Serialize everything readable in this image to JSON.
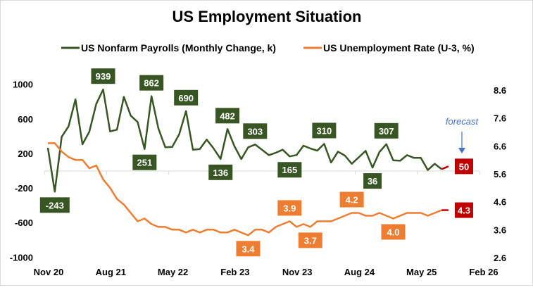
{
  "chart_data": {
    "type": "line",
    "title": "US Employment Situation",
    "legend_position": "top",
    "grid": false,
    "x_tick_labels": [
      "Nov 20",
      "Aug 21",
      "May 22",
      "Feb 23",
      "Nov 23",
      "Aug 24",
      "May 25",
      "Feb 26"
    ],
    "x_start": "Nov 2020",
    "x_frequency": "monthly",
    "y_left": {
      "ticks": [
        "1000",
        "600",
        "200",
        "-200",
        "-600",
        "-1000"
      ],
      "range": [
        -1000,
        1000
      ]
    },
    "y_right": {
      "ticks": [
        "8.6",
        "7.6",
        "6.6",
        "5.6",
        "4.6",
        "3.6",
        "2.6"
      ],
      "range": [
        2.6,
        8.6
      ]
    },
    "series": [
      {
        "name": "US Nonfarm Payrolls (Monthly Change, k)",
        "axis": "left",
        "color": "#375623",
        "values": [
          265,
          -243,
          392,
          514,
          826,
          305,
          452,
          772,
          939,
          455,
          474,
          854,
          637,
          563,
          251,
          862,
          487,
          270,
          275,
          419,
          690,
          243,
          251,
          360,
          257,
          136,
          482,
          284,
          134,
          270,
          303,
          243,
          180,
          208,
          243,
          165,
          182,
          289,
          257,
          232,
          310,
          94,
          221,
          175,
          80,
          155,
          230,
          36,
          216,
          307,
          120,
          115,
          180,
          148,
          148,
          7,
          80,
          18
        ],
        "forecast": {
          "month": "Sep 2025",
          "value": 50,
          "label": "50"
        },
        "labels": [
          {
            "index": 1,
            "text": "-243",
            "position": "below"
          },
          {
            "index": 8,
            "text": "939",
            "position": "above"
          },
          {
            "index": 14,
            "text": "251",
            "position": "below"
          },
          {
            "index": 15,
            "text": "862",
            "position": "above"
          },
          {
            "index": 20,
            "text": "690",
            "position": "above"
          },
          {
            "index": 25,
            "text": "136",
            "position": "below"
          },
          {
            "index": 26,
            "text": "482",
            "position": "above"
          },
          {
            "index": 30,
            "text": "303",
            "position": "above"
          },
          {
            "index": 35,
            "text": "165",
            "position": "below"
          },
          {
            "index": 40,
            "text": "310",
            "position": "above"
          },
          {
            "index": 47,
            "text": "36",
            "position": "below"
          },
          {
            "index": 49,
            "text": "307",
            "position": "above"
          }
        ]
      },
      {
        "name": "US Unemployment Rate (U-3, %)",
        "axis": "right",
        "color": "#ED7D31",
        "values": [
          6.7,
          6.7,
          6.4,
          6.2,
          6.1,
          6.1,
          5.8,
          5.9,
          5.4,
          5.1,
          4.7,
          4.5,
          4.2,
          3.9,
          4.0,
          3.8,
          3.7,
          3.7,
          3.6,
          3.6,
          3.5,
          3.6,
          3.5,
          3.6,
          3.6,
          3.5,
          3.5,
          3.6,
          3.5,
          3.4,
          3.6,
          3.6,
          3.5,
          3.7,
          3.8,
          3.9,
          3.7,
          3.8,
          3.7,
          3.9,
          3.9,
          3.9,
          4.0,
          4.1,
          4.2,
          4.2,
          4.1,
          4.1,
          4.2,
          4.1,
          4.0,
          4.1,
          4.2,
          4.2,
          4.2,
          4.1,
          4.2,
          4.3
        ],
        "forecast": {
          "month": "Sep 2025",
          "value": 4.3,
          "label": "4.3"
        },
        "labels": [
          {
            "index": 29,
            "text": "3.4",
            "position": "below"
          },
          {
            "index": 35,
            "text": "3.9",
            "position": "above"
          },
          {
            "index": 38,
            "text": "3.7",
            "position": "below"
          },
          {
            "index": 44,
            "text": "4.2",
            "position": "above"
          },
          {
            "index": 50,
            "text": "4.0",
            "position": "below"
          }
        ]
      }
    ],
    "forecast_color": "#C00000",
    "annotation": {
      "text": "forecast",
      "color": "#4472C4"
    }
  }
}
